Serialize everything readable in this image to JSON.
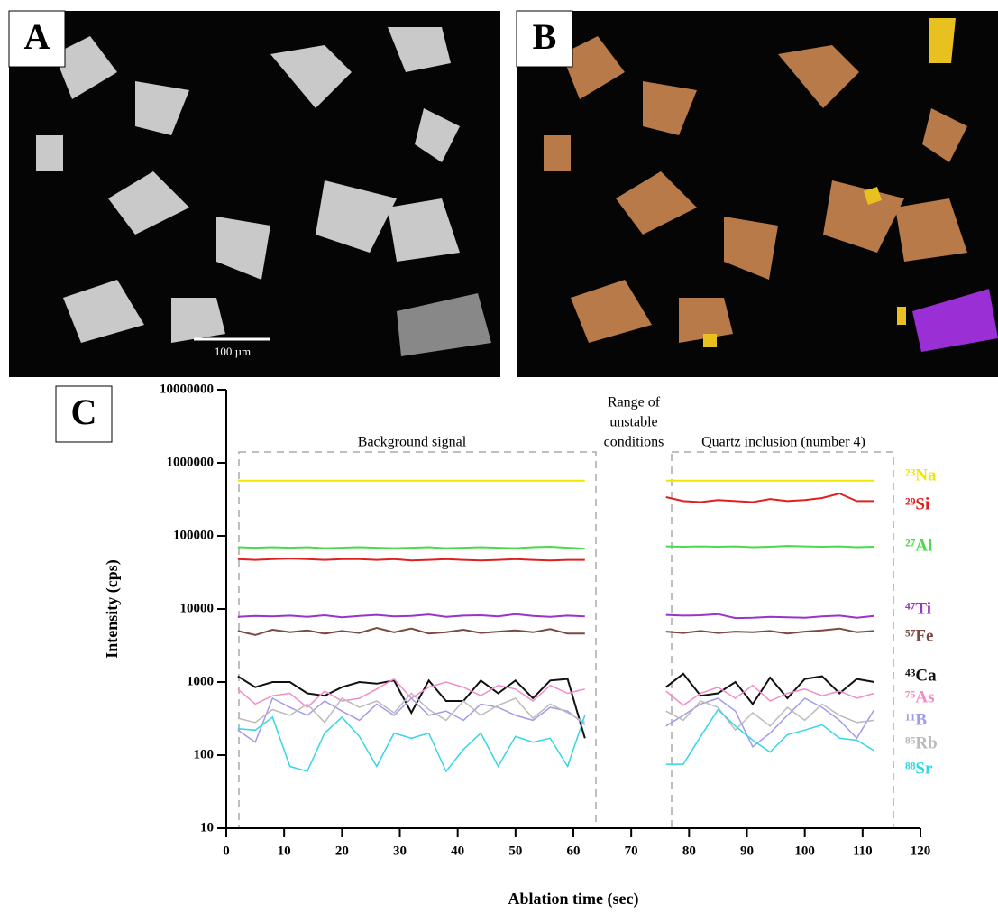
{
  "panel_labels": [
    "A",
    "B",
    "C"
  ],
  "scale_bar": "100 µm",
  "chart_data": {
    "type": "line",
    "x_label": "Ablation time (sec)",
    "y_label": "Intensity (cps)",
    "annotations": [
      "Background signal",
      "Range of",
      "unstable",
      "conditions",
      "Quartz inclusion (number 4)"
    ],
    "x": [
      2,
      5,
      8,
      11,
      14,
      17,
      20,
      23,
      26,
      29,
      32,
      35,
      38,
      41,
      44,
      47,
      50,
      53,
      56,
      59,
      62,
      70,
      76,
      79,
      82,
      85,
      88,
      91,
      94,
      97,
      100,
      103,
      106,
      109,
      112
    ],
    "xlim": [
      0,
      120
    ],
    "xticks": [
      0,
      10,
      20,
      30,
      40,
      50,
      60,
      70,
      80,
      90,
      100,
      110,
      120
    ],
    "ylim": [
      10,
      10000000
    ],
    "yticks": [
      10,
      100,
      1000,
      10000,
      100000,
      1000000,
      10000000
    ],
    "yscale": "log",
    "series": [
      {
        "name": "²³Na",
        "color": "#f2e600",
        "values": [
          570000,
          570000,
          570000,
          570000,
          570000,
          570000,
          570000,
          570000,
          570000,
          570000,
          570000,
          570000,
          570000,
          570000,
          570000,
          570000,
          570000,
          570000,
          570000,
          570000,
          570000,
          null,
          570000,
          570000,
          570000,
          570000,
          570000,
          570000,
          570000,
          570000,
          570000,
          570000,
          570000,
          570000,
          570000
        ]
      },
      {
        "name": "²⁹Si",
        "color": "#e0201f",
        "values": [
          48000,
          47000,
          48000,
          49000,
          48000,
          47000,
          48000,
          48000,
          47000,
          48000,
          46000,
          47000,
          48000,
          47000,
          46000,
          47000,
          48000,
          47000,
          46000,
          47000,
          47000,
          null,
          340000,
          300000,
          290000,
          310000,
          300000,
          290000,
          320000,
          300000,
          310000,
          330000,
          380000,
          300000,
          300000
        ]
      },
      {
        "name": "²⁷Al",
        "color": "#4cd94c",
        "values": [
          70000,
          69000,
          70000,
          69000,
          70000,
          68000,
          69000,
          70000,
          69000,
          68000,
          69000,
          70000,
          68000,
          69000,
          70000,
          69000,
          68000,
          70000,
          71000,
          69000,
          67000,
          null,
          72000,
          71000,
          72000,
          71000,
          72000,
          70000,
          71000,
          73000,
          72000,
          71000,
          72000,
          70000,
          71000
        ]
      },
      {
        "name": "⁴⁷Ti",
        "color": "#9a33cc",
        "values": [
          7800,
          8000,
          7900,
          8100,
          7800,
          8200,
          7700,
          8000,
          8300,
          7900,
          8000,
          8400,
          7800,
          8100,
          8200,
          7900,
          8500,
          8000,
          7800,
          8100,
          7900,
          null,
          8300,
          8100,
          8200,
          8500,
          7500,
          7600,
          7800,
          7700,
          7600,
          7900,
          8100,
          7600,
          8000
        ]
      },
      {
        "name": "⁵⁷Fe",
        "color": "#7a4a40",
        "values": [
          5000,
          4400,
          5200,
          4800,
          5100,
          4600,
          5000,
          4700,
          5500,
          4800,
          5400,
          4600,
          4800,
          5200,
          4700,
          4900,
          5100,
          4800,
          5300,
          4600,
          4600,
          null,
          4900,
          4700,
          5000,
          4700,
          4900,
          4800,
          5000,
          4600,
          4900,
          5100,
          5400,
          4800,
          5000
        ]
      },
      {
        "name": "⁴³Ca",
        "color": "#111111",
        "values": [
          1200,
          850,
          1000,
          1000,
          700,
          650,
          850,
          1000,
          950,
          1050,
          380,
          1050,
          550,
          550,
          1050,
          700,
          1050,
          600,
          1050,
          1100,
          170,
          null,
          850,
          1300,
          650,
          700,
          1000,
          500,
          1150,
          600,
          1100,
          1200,
          700,
          1100,
          1000
        ]
      },
      {
        "name": "⁷⁵As",
        "color": "#f28cc8",
        "values": [
          800,
          500,
          650,
          700,
          450,
          750,
          550,
          600,
          800,
          1100,
          600,
          850,
          1000,
          850,
          650,
          900,
          800,
          550,
          900,
          700,
          800,
          null,
          750,
          480,
          700,
          850,
          600,
          900,
          550,
          700,
          800,
          650,
          750,
          600,
          700
        ]
      },
      {
        "name": "¹¹B",
        "color": "#a29be8",
        "values": [
          220,
          150,
          600,
          450,
          350,
          550,
          400,
          300,
          500,
          350,
          600,
          350,
          400,
          300,
          500,
          450,
          350,
          300,
          450,
          400,
          260,
          null,
          250,
          350,
          500,
          600,
          400,
          130,
          200,
          350,
          600,
          450,
          300,
          170,
          420
        ]
      },
      {
        "name": "⁸⁵Rb",
        "color": "#bbbbbb",
        "values": [
          320,
          280,
          420,
          350,
          500,
          280,
          600,
          450,
          550,
          380,
          700,
          420,
          300,
          550,
          350,
          480,
          600,
          320,
          500,
          380,
          280,
          null,
          400,
          300,
          550,
          450,
          220,
          380,
          250,
          450,
          300,
          500,
          350,
          280,
          300
        ]
      },
      {
        "name": "⁸⁸Sr",
        "color": "#33d6e6",
        "values": [
          230,
          220,
          330,
          70,
          60,
          200,
          330,
          180,
          70,
          200,
          170,
          200,
          60,
          120,
          200,
          70,
          180,
          150,
          170,
          70,
          350,
          null,
          75,
          75,
          180,
          420,
          250,
          160,
          110,
          190,
          220,
          260,
          170,
          160,
          115
        ]
      }
    ]
  }
}
